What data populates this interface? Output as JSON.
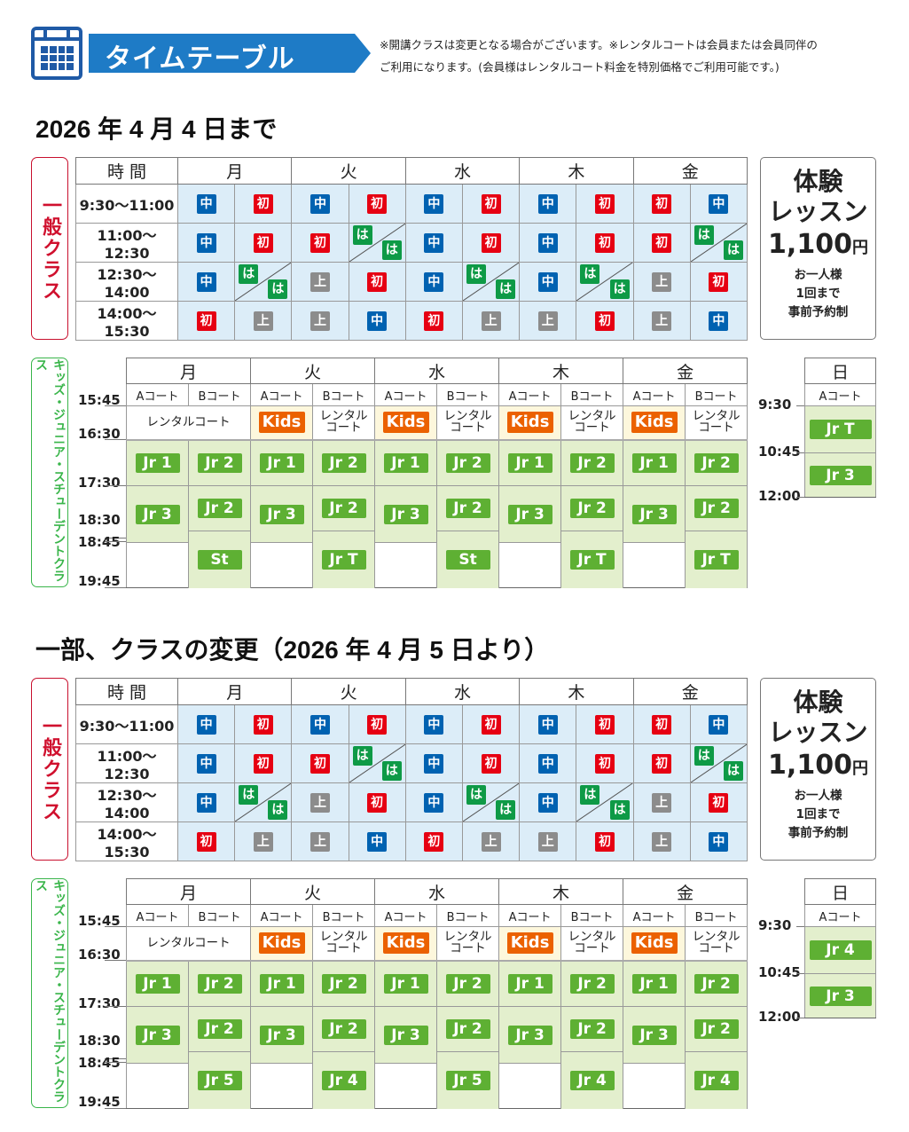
{
  "header": {
    "title": "タイムテーブル",
    "note_line1": "※開講クラスは変更となる場合がございます。※レンタルコートは会員または会員同伴の",
    "note_line2": "ご利用になります。(会員様はレンタルコート料金を特別価格でご利用可能です。)",
    "icon": "calendar-icon",
    "accent_color": "#1e7bc6"
  },
  "legend_colors": {
    "中": "#0062b1",
    "初": "#e60012",
    "上": "#8c8c8c",
    "は": "#0e9a46",
    "Jr": "#5eb033",
    "Kids": "#eb6100"
  },
  "sections": [
    {
      "title": "2026 年 4 月 4 日まで",
      "general": {
        "side_label": "一般クラス",
        "time_header": "時 間",
        "days": [
          "月",
          "火",
          "水",
          "木",
          "金"
        ],
        "rows": [
          {
            "time": "9:30〜11:00",
            "cells": [
              "中",
              "初",
              "中",
              "初",
              "中",
              "初",
              "中",
              "初",
              "初",
              "中"
            ]
          },
          {
            "time": "11:00〜12:30",
            "cells": [
              "中",
              "初",
              "初",
              "は/は",
              "中",
              "初",
              "中",
              "初",
              "初",
              "は/は"
            ]
          },
          {
            "time": "12:30〜14:00",
            "cells": [
              "中",
              "は/は",
              "上",
              "初",
              "中",
              "は/は",
              "中",
              "は/は",
              "上",
              "初"
            ]
          },
          {
            "time": "14:00〜15:30",
            "cells": [
              "初",
              "上",
              "上",
              "中",
              "初",
              "上",
              "上",
              "初",
              "上",
              "中"
            ]
          }
        ]
      },
      "trial": {
        "line1": "体験",
        "line2": "レッスン",
        "price": "1,100",
        "yen": "円",
        "sub1": "お一人様",
        "sub2": "1回まで",
        "sub3": "事前予約制"
      },
      "kids": {
        "side_label": "キッズ・ジュニア・スチューデントクラス",
        "days": [
          "月",
          "火",
          "水",
          "木",
          "金"
        ],
        "court_a": "Aコート",
        "court_b": "Bコート",
        "rental_full": "レンタルコート",
        "rental_l1": "レンタル",
        "rental_l2": "コート",
        "kids_label": "Kids",
        "times": [
          "15:45",
          "16:30",
          "17:30",
          "18:30",
          "18:45",
          "19:45"
        ],
        "slot1_a": "Jr 1",
        "slot1_b": "Jr 2",
        "slot2_a": "Jr 3",
        "slot2_b": "Jr 2",
        "slot3_b": [
          "St",
          "Jr T",
          "St",
          "Jr T",
          "Jr T"
        ]
      },
      "sunday": {
        "day": "日",
        "court": "Aコート",
        "times": [
          "9:30",
          "10:45",
          "12:00"
        ],
        "slots": [
          "Jr T",
          "Jr 3"
        ]
      }
    },
    {
      "title": "一部、クラスの変更（2026 年 4 月 5 日より）",
      "general": {
        "side_label": "一般クラス",
        "time_header": "時 間",
        "days": [
          "月",
          "火",
          "水",
          "木",
          "金"
        ],
        "rows": [
          {
            "time": "9:30〜11:00",
            "cells": [
              "中",
              "初",
              "中",
              "初",
              "中",
              "初",
              "中",
              "初",
              "初",
              "中"
            ]
          },
          {
            "time": "11:00〜12:30",
            "cells": [
              "中",
              "初",
              "初",
              "は/は",
              "中",
              "初",
              "中",
              "初",
              "初",
              "は/は"
            ]
          },
          {
            "time": "12:30〜14:00",
            "cells": [
              "中",
              "は/は",
              "上",
              "初",
              "中",
              "は/は",
              "中",
              "は/は",
              "上",
              "初"
            ]
          },
          {
            "time": "14:00〜15:30",
            "cells": [
              "初",
              "上",
              "上",
              "中",
              "初",
              "上",
              "上",
              "初",
              "上",
              "中"
            ]
          }
        ]
      },
      "trial": {
        "line1": "体験",
        "line2": "レッスン",
        "price": "1,100",
        "yen": "円",
        "sub1": "お一人様",
        "sub2": "1回まで",
        "sub3": "事前予約制"
      },
      "kids": {
        "side_label": "キッズ・ジュニア・スチューデントクラス",
        "days": [
          "月",
          "火",
          "水",
          "木",
          "金"
        ],
        "court_a": "Aコート",
        "court_b": "Bコート",
        "rental_full": "レンタルコート",
        "rental_l1": "レンタル",
        "rental_l2": "コート",
        "kids_label": "Kids",
        "times": [
          "15:45",
          "16:30",
          "17:30",
          "18:30",
          "18:45",
          "19:45"
        ],
        "slot1_a": "Jr 1",
        "slot1_b": "Jr 2",
        "slot2_a": "Jr 3",
        "slot2_b": "Jr 2",
        "slot3_b": [
          "Jr 5",
          "Jr 4",
          "Jr 5",
          "Jr 4",
          "Jr 4"
        ]
      },
      "sunday": {
        "day": "日",
        "court": "Aコート",
        "times": [
          "9:30",
          "10:45",
          "12:00"
        ],
        "slots": [
          "Jr 4",
          "Jr 3"
        ]
      }
    }
  ]
}
